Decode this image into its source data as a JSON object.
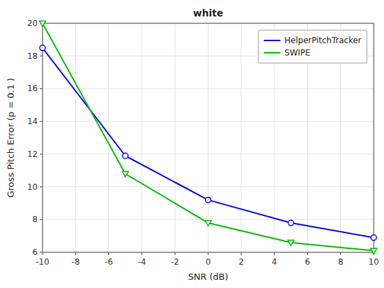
{
  "chart_data": {
    "type": "line",
    "title": "white",
    "xlabel": "SNR (dB)",
    "ylabel": "Gross Pitch Error (p = 0.1 )",
    "x": [
      -10,
      -5,
      0,
      5,
      10
    ],
    "series": [
      {
        "name": "HelperPitchTracker",
        "color": "#0000FF",
        "marker": "circle",
        "values": [
          18.5,
          11.9,
          9.2,
          7.8,
          6.9
        ]
      },
      {
        "name": "SWIPE",
        "color": "#00BB00",
        "marker": "triangle-down",
        "values": [
          20.0,
          10.8,
          7.8,
          6.6,
          6.1
        ]
      }
    ],
    "xlim": [
      -10,
      10
    ],
    "ylim": [
      6,
      20
    ],
    "xticks": [
      -10,
      -8,
      -6,
      -4,
      -2,
      0,
      2,
      4,
      6,
      8,
      10
    ],
    "yticks": [
      6,
      8,
      10,
      12,
      14,
      16,
      18,
      20
    ],
    "grid": true,
    "legend": "upper right"
  }
}
